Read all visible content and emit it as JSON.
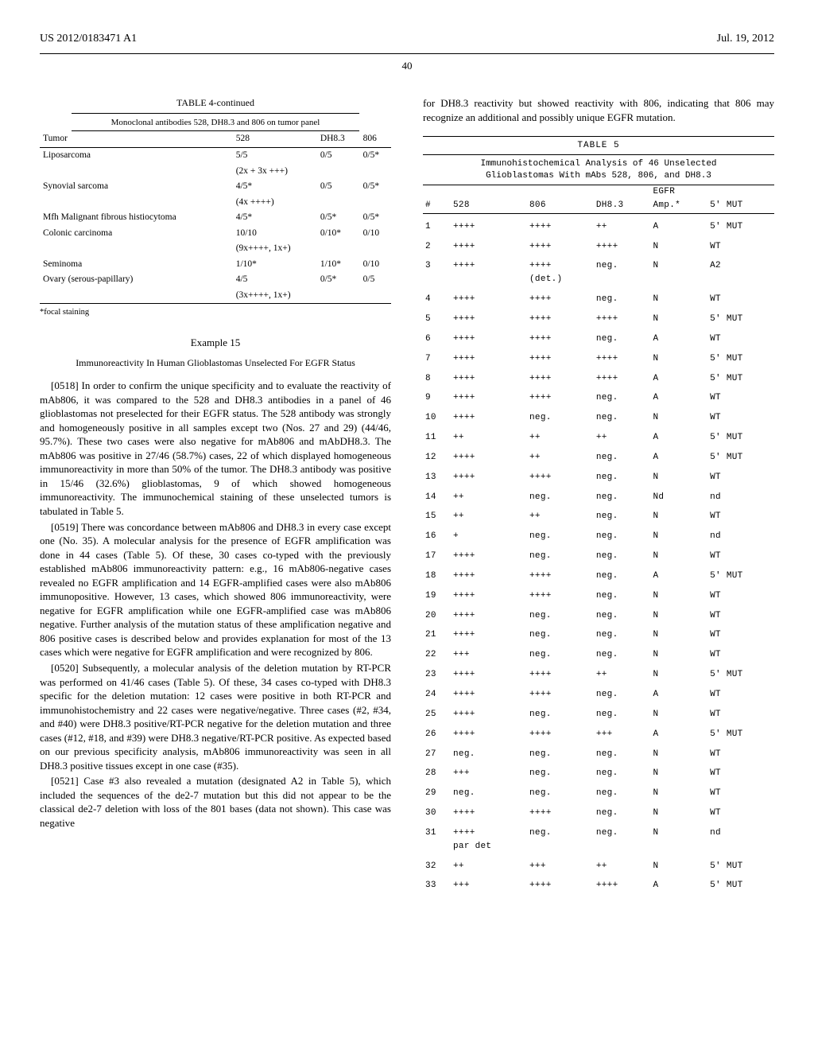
{
  "header": {
    "pub_number": "US 2012/0183471 A1",
    "pub_date": "Jul. 19, 2012",
    "page_number": "40"
  },
  "table4": {
    "caption": "TABLE 4-continued",
    "subcaption": "Monoclonal antibodies 528, DH8.3 and 806 on tumor panel",
    "columns": [
      "Tumor",
      "528",
      "DH8.3",
      "806"
    ],
    "rows": [
      {
        "c": [
          "Liposarcoma",
          "5/5",
          "0/5",
          "0/5*"
        ],
        "sub": [
          "",
          "(2x + 3x +++)",
          "",
          ""
        ]
      },
      {
        "c": [
          "Synovial sarcoma",
          "4/5*",
          "0/5",
          "0/5*"
        ],
        "sub": [
          "",
          "(4x ++++)",
          "",
          ""
        ]
      },
      {
        "c": [
          "Mfh Malignant fibrous histiocytoma",
          "4/5*",
          "0/5*",
          "0/5*"
        ]
      },
      {
        "c": [
          "Colonic carcinoma",
          "10/10",
          "0/10*",
          "0/10"
        ],
        "sub": [
          "",
          "(9x++++, 1x+)",
          "",
          ""
        ]
      },
      {
        "c": [
          "Seminoma",
          "1/10*",
          "1/10*",
          "0/10"
        ]
      },
      {
        "c": [
          "Ovary (serous-papillary)",
          "4/5",
          "0/5*",
          "0/5"
        ],
        "sub": [
          "",
          "(3x++++, 1x+)",
          "",
          ""
        ]
      }
    ],
    "footnote": "*focal staining"
  },
  "example": {
    "title": "Example 15",
    "subtitle": "Immunoreactivity In Human Glioblastomas Unselected For EGFR Status"
  },
  "paras": {
    "p0518": "[0518]  In order to confirm the unique specificity and to evaluate the reactivity of mAb806, it was compared to the 528 and DH8.3 antibodies in a panel of 46 glioblastomas not preselected for their EGFR status. The 528 antibody was strongly and homogeneously positive in all samples except two (Nos. 27 and 29) (44/46, 95.7%). These two cases were also negative for mAb806 and mAbDH8.3. The mAb806 was positive in 27/46 (58.7%) cases, 22 of which displayed homogeneous immunoreactivity in more than 50% of the tumor. The DH8.3 antibody was positive in 15/46 (32.6%) glioblastomas, 9 of which showed homogeneous immunoreactivity. The immunochemical staining of these unselected tumors is tabulated in Table 5.",
    "p0519": "[0519]  There was concordance between mAb806 and DH8.3 in every case except one (No. 35). A molecular analysis for the presence of EGFR amplification was done in 44 cases (Table 5). Of these, 30 cases co-typed with the previously established mAb806 immunoreactivity pattern: e.g., 16 mAb806-negative cases revealed no EGFR amplification and 14 EGFR-amplified cases were also mAb806 immunopositive. However, 13 cases, which showed 806 immunoreactivity, were negative for EGFR amplification while one EGFR-amplified case was mAb806 negative. Further analysis of the mutation status of these amplification negative and 806 positive cases is described below and provides explanation for most of the 13 cases which were negative for EGFR amplification and were recognized by 806.",
    "p0520": "[0520]  Subsequently, a molecular analysis of the deletion mutation by RT-PCR was performed on 41/46 cases (Table 5). Of these, 34 cases co-typed with DH8.3 specific for the deletion mutation: 12 cases were positive in both RT-PCR and immunohistochemistry and 22 cases were negative/negative. Three cases (#2, #34, and #40) were DH8.3 positive/RT-PCR negative for the deletion mutation and three cases (#12, #18, and #39) were DH8.3 negative/RT-PCR positive. As expected based on our previous specificity analysis, mAb806 immunoreactivity was seen in all DH8.3 positive tissues except in one case (#35).",
    "p0521": "[0521]  Case #3 also revealed a mutation (designated A2 in Table 5), which included the sequences of the de2-7 mutation but this did not appear to be the classical de2-7 deletion with loss of the 801 bases (data not shown). This case was negative",
    "p_cont": "for DH8.3 reactivity but showed reactivity with 806, indicating that 806 may recognize an additional and possibly unique EGFR mutation."
  },
  "table5": {
    "caption": "TABLE 5",
    "title_l1": "Immunohistochemical Analysis of 46 Unselected",
    "title_l2": "Glioblastomas With mAbs 528, 806, and DH8.3",
    "columns": [
      "#",
      "528",
      "806",
      "DH8.3",
      "EGFR Amp.*",
      "5' MUT"
    ],
    "rows": [
      [
        "1",
        "++++",
        "++++",
        "++",
        "A",
        "5' MUT"
      ],
      [
        "2",
        "++++",
        "++++",
        "++++",
        "N",
        "WT"
      ],
      [
        "3",
        "++++",
        "++++\n(det.)",
        "neg.",
        "N",
        "A2"
      ],
      [
        "4",
        "++++",
        "++++",
        "neg.",
        "N",
        "WT"
      ],
      [
        "5",
        "++++",
        "++++",
        "++++",
        "N",
        "5' MUT"
      ],
      [
        "6",
        "++++",
        "++++",
        "neg.",
        "A",
        "WT"
      ],
      [
        "7",
        "++++",
        "++++",
        "++++",
        "N",
        "5' MUT"
      ],
      [
        "8",
        "++++",
        "++++",
        "++++",
        "A",
        "5' MUT"
      ],
      [
        "9",
        "++++",
        "++++",
        "neg.",
        "A",
        "WT"
      ],
      [
        "10",
        "++++",
        "neg.",
        "neg.",
        "N",
        "WT"
      ],
      [
        "11",
        "++",
        "++",
        "++",
        "A",
        "5' MUT"
      ],
      [
        "12",
        "++++",
        "++",
        "neg.",
        "A",
        "5' MUT"
      ],
      [
        "13",
        "++++",
        "++++",
        "neg.",
        "N",
        "WT"
      ],
      [
        "14",
        "++",
        "neg.",
        "neg.",
        "Nd",
        "nd"
      ],
      [
        "15",
        "++",
        "++",
        "neg.",
        "N",
        "WT"
      ],
      [
        "16",
        "+",
        "neg.",
        "neg.",
        "N",
        "nd"
      ],
      [
        "17",
        "++++",
        "neg.",
        "neg.",
        "N",
        "WT"
      ],
      [
        "18",
        "++++",
        "++++",
        "neg.",
        "A",
        "5' MUT"
      ],
      [
        "19",
        "++++",
        "++++",
        "neg.",
        "N",
        "WT"
      ],
      [
        "20",
        "++++",
        "neg.",
        "neg.",
        "N",
        "WT"
      ],
      [
        "21",
        "++++",
        "neg.",
        "neg.",
        "N",
        "WT"
      ],
      [
        "22",
        "+++",
        "neg.",
        "neg.",
        "N",
        "WT"
      ],
      [
        "23",
        "++++",
        "++++",
        "++",
        "N",
        "5' MUT"
      ],
      [
        "24",
        "++++",
        "++++",
        "neg.",
        "A",
        "WT"
      ],
      [
        "25",
        "++++",
        "neg.",
        "neg.",
        "N",
        "WT"
      ],
      [
        "26",
        "++++",
        "++++",
        "+++",
        "A",
        "5' MUT"
      ],
      [
        "27",
        "neg.",
        "neg.",
        "neg.",
        "N",
        "WT"
      ],
      [
        "28",
        "+++",
        "neg.",
        "neg.",
        "N",
        "WT"
      ],
      [
        "29",
        "neg.",
        "neg.",
        "neg.",
        "N",
        "WT"
      ],
      [
        "30",
        "++++",
        "++++",
        "neg.",
        "N",
        "WT"
      ],
      [
        "31",
        "++++\npar det",
        "neg.",
        "neg.",
        "N",
        "nd"
      ],
      [
        "32",
        "++",
        "+++",
        "++",
        "N",
        "5' MUT"
      ],
      [
        "33",
        "+++",
        "++++",
        "++++",
        "A",
        "5' MUT"
      ]
    ]
  }
}
